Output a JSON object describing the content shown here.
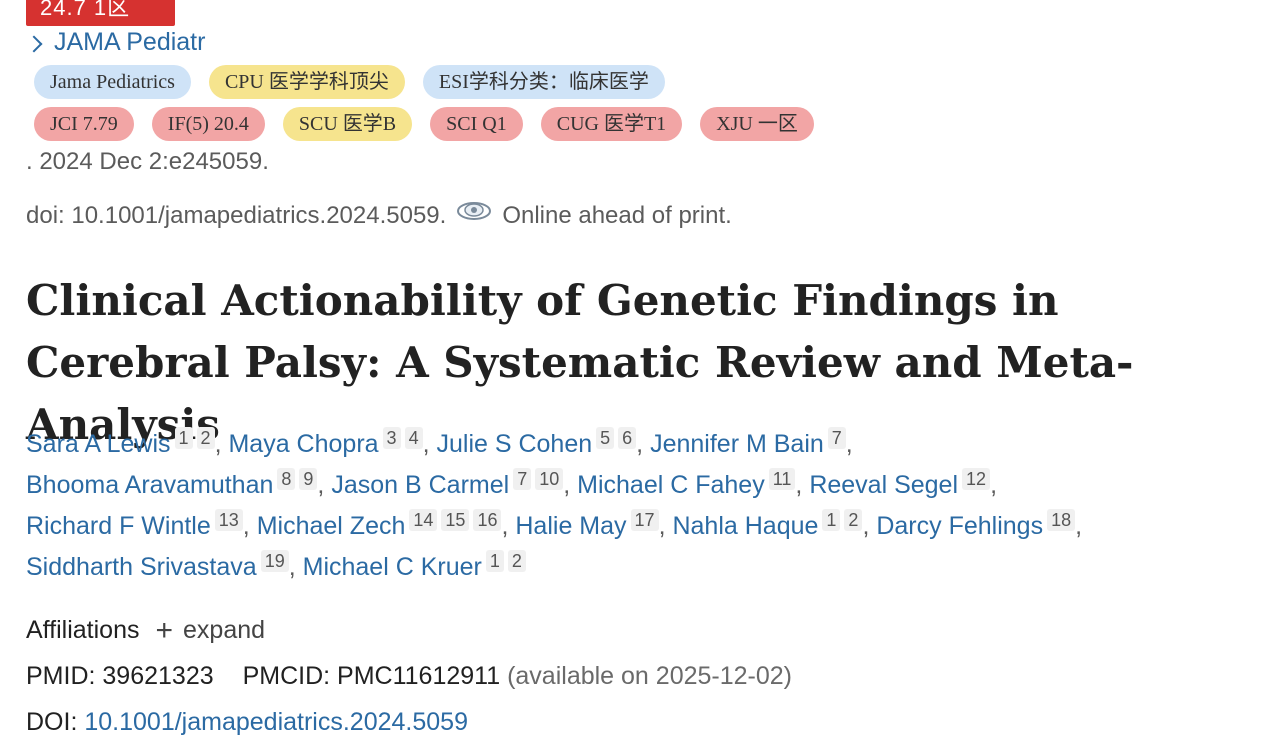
{
  "top_badge": "24.7 1区",
  "journal": {
    "link_text": "JAMA Pediatr"
  },
  "tags_row1": [
    {
      "label": "Jama Pediatrics",
      "color": "#cfe3f7"
    },
    {
      "label": "CPU 医学学科顶尖",
      "color": "#f6e48e"
    },
    {
      "label": "ESI学科分类：临床医学",
      "color": "#cfe3f7"
    }
  ],
  "tags_row2": [
    {
      "label": "JCI 7.79",
      "color": "#f2a5a5"
    },
    {
      "label": "IF(5) 20.4",
      "color": "#f2a5a5"
    },
    {
      "label": "SCU 医学B",
      "color": "#f6e48e"
    },
    {
      "label": "SCI Q1",
      "color": "#f2a5a5"
    },
    {
      "label": "CUG 医学T1",
      "color": "#f2a5a5"
    },
    {
      "label": "XJU 一区",
      "color": "#f2a5a5"
    }
  ],
  "citation": ". 2024 Dec 2:e245059.",
  "doi_line": {
    "doi": "doi: 10.1001/jamapediatrics.2024.5059.",
    "status": "Online ahead of print."
  },
  "title": "Clinical Actionability of Genetic Findings in Cerebral Palsy: A Systematic Review and Meta-Analysis",
  "authors": [
    {
      "name": "Sara A Lewis",
      "affils": [
        "1",
        "2"
      ]
    },
    {
      "name": "Maya Chopra",
      "affils": [
        "3",
        "4"
      ]
    },
    {
      "name": "Julie S Cohen",
      "affils": [
        "5",
        "6"
      ]
    },
    {
      "name": "Jennifer M Bain",
      "affils": [
        "7"
      ]
    },
    {
      "name": "Bhooma Aravamuthan",
      "affils": [
        "8",
        "9"
      ]
    },
    {
      "name": "Jason B Carmel",
      "affils": [
        "7",
        "10"
      ]
    },
    {
      "name": "Michael C Fahey",
      "affils": [
        "11"
      ]
    },
    {
      "name": "Reeval Segel",
      "affils": [
        "12"
      ]
    },
    {
      "name": "Richard F Wintle",
      "affils": [
        "13"
      ]
    },
    {
      "name": "Michael Zech",
      "affils": [
        "14",
        "15",
        "16"
      ]
    },
    {
      "name": "Halie May",
      "affils": [
        "17"
      ]
    },
    {
      "name": "Nahla Haque",
      "affils": [
        "1",
        "2"
      ]
    },
    {
      "name": "Darcy Fehlings",
      "affils": [
        "18"
      ]
    },
    {
      "name": "Siddharth Srivastava",
      "affils": [
        "19"
      ]
    },
    {
      "name": "Michael C Kruer",
      "affils": [
        "1",
        "2"
      ]
    }
  ],
  "affiliations": {
    "label": "Affiliations",
    "toggle": "expand"
  },
  "ids": {
    "pmid_label": "PMID:",
    "pmid": "39621323",
    "pmcid_label": "PMCID:",
    "pmcid": "PMC11612911",
    "availability": "(available on 2025-12-02)"
  },
  "bottom_doi": {
    "label": "DOI:",
    "value": "10.1001/jamapediatrics.2024.5059"
  }
}
